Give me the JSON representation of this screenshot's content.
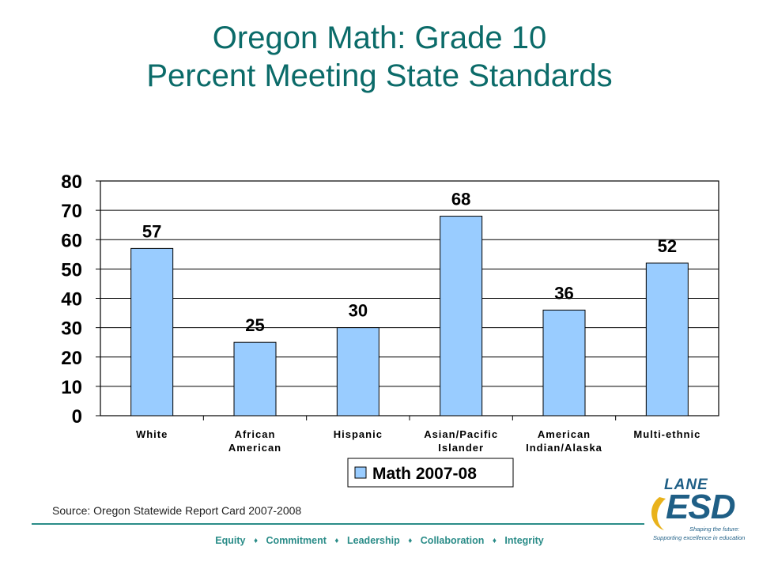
{
  "title": {
    "line1": "Oregon Math: Grade 10",
    "line2": "Percent Meeting State Standards"
  },
  "source": "Source: Oregon Statewide Report Card 2007-2008",
  "footer": {
    "items": [
      "Equity",
      "Commitment",
      "Leadership",
      "Collaboration",
      "Integrity"
    ],
    "separator": "♦"
  },
  "logo": {
    "top": "LANE",
    "main": "ESD",
    "tagline1": "Shaping the future:",
    "tagline2": "Supporting excellence in education"
  },
  "colors": {
    "title": "#0b6b69",
    "bar": "#99ccff",
    "accent": "#2a8c88"
  },
  "chart_data": {
    "type": "bar",
    "categories": [
      [
        "White"
      ],
      [
        "African",
        "American"
      ],
      [
        "Hispanic"
      ],
      [
        "Asian/Pacific",
        "Islander"
      ],
      [
        "American",
        "Indian/Alaska"
      ],
      [
        "Multi-ethnic"
      ]
    ],
    "series": [
      {
        "name": "Math 2007-08",
        "values": [
          57,
          25,
          30,
          68,
          36,
          52
        ]
      }
    ],
    "yticks": [
      0,
      10,
      20,
      30,
      40,
      50,
      60,
      70,
      80
    ],
    "ylim": [
      0,
      80
    ],
    "grid": true,
    "data_labels": true,
    "legend": "bottom"
  }
}
